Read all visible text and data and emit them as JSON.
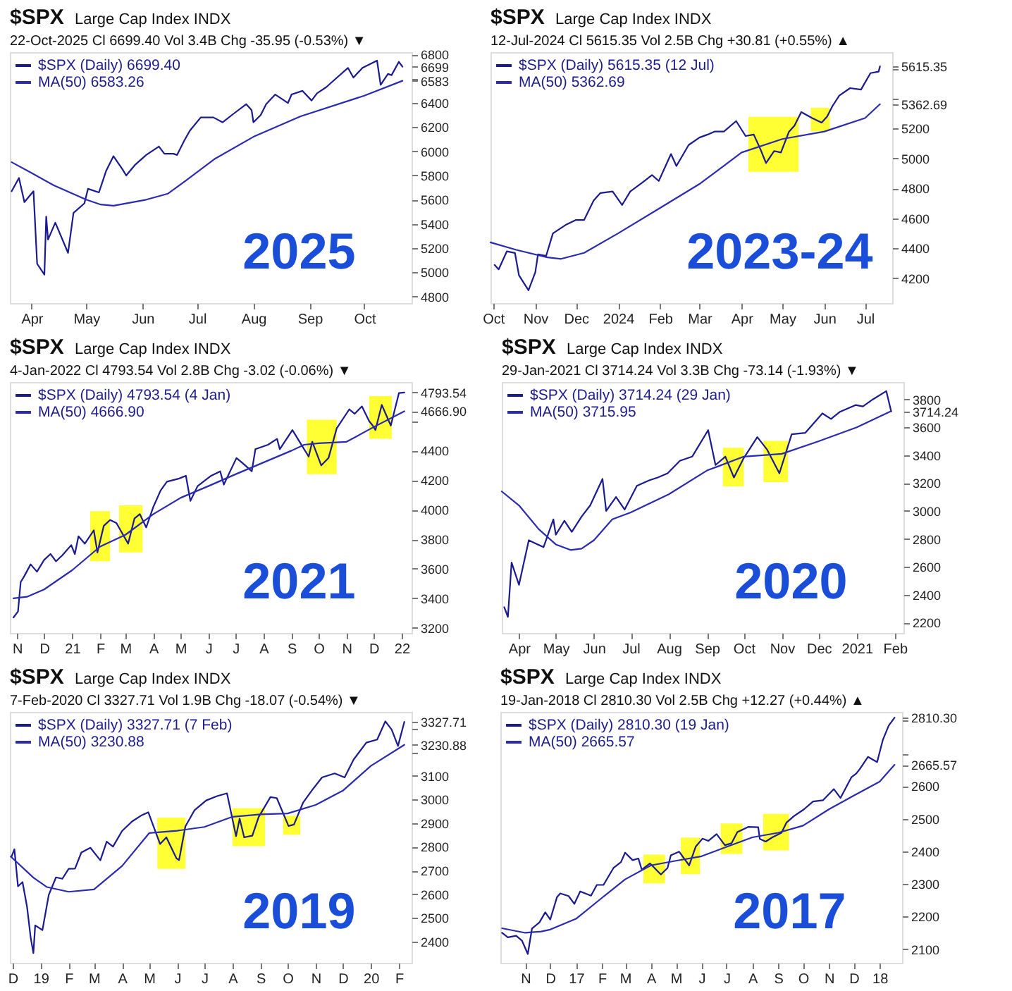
{
  "chart_data": [
    {
      "type": "line",
      "title": "$SPX",
      "subtitle": "Large Cap Index INDX",
      "legend": "top left",
      "annotations": [
        "22-Oct-2025   Cl 6699.40   Vol 3.4B   Chg -35.95 (-0.53%) ▼",
        "2025"
      ],
      "xlim": [
        "2025-03-20",
        "2025-10-27"
      ],
      "xticks": [
        {
          "value": "2025-04-01",
          "label": "Apr"
        },
        {
          "value": "2025-05-01",
          "label": "May"
        },
        {
          "value": "2025-06-01",
          "label": "Jun"
        },
        {
          "value": "2025-07-01",
          "label": "Jul"
        },
        {
          "value": "2025-08-01",
          "label": "Aug"
        },
        {
          "value": "2025-09-01",
          "label": "Sep"
        },
        {
          "value": "2025-10-01",
          "label": "Oct"
        }
      ],
      "ylim": [
        4745,
        6820
      ],
      "yticks": [
        4800,
        5000,
        5200,
        5400,
        5600,
        5800,
        6000,
        6200,
        6400,
        {
          "value": 6583.26,
          "label": "6583"
        },
        {
          "value": 6600,
          "label": null
        },
        {
          "value": 6699.4,
          "label": "6699"
        },
        6800
      ],
      "series": [
        {
          "name": "$SPX (Daily) 6699.40",
          "color": "#1b1b8f",
          "x": [
            "2025-03-21",
            "2025-03-25",
            "2025-03-28",
            "2025-04-02",
            "2025-04-04",
            "2025-04-08",
            "2025-04-09",
            "2025-04-10",
            "2025-04-14",
            "2025-04-21",
            "2025-04-24",
            "2025-04-30",
            "2025-05-02",
            "2025-05-08",
            "2025-05-12",
            "2025-05-16",
            "2025-05-21",
            "2025-05-23",
            "2025-05-28",
            "2025-06-03",
            "2025-06-10",
            "2025-06-13",
            "2025-06-18",
            "2025-06-20",
            "2025-06-24",
            "2025-06-27",
            "2025-07-03",
            "2025-07-10",
            "2025-07-15",
            "2025-07-21",
            "2025-07-28",
            "2025-07-31",
            "2025-08-01",
            "2025-08-05",
            "2025-08-08",
            "2025-08-13",
            "2025-08-20",
            "2025-08-22",
            "2025-08-28",
            "2025-09-02",
            "2025-09-05",
            "2025-09-10",
            "2025-09-16",
            "2025-09-22",
            "2025-09-25",
            "2025-09-30",
            "2025-10-08",
            "2025-10-10",
            "2025-10-14",
            "2025-10-16",
            "2025-10-20",
            "2025-10-22"
          ],
          "values": [
            5670,
            5780,
            5580,
            5670,
            5070,
            4980,
            5460,
            5270,
            5410,
            5160,
            5490,
            5570,
            5690,
            5660,
            5840,
            5960,
            5850,
            5800,
            5890,
            5970,
            6040,
            5980,
            5980,
            5970,
            6090,
            6170,
            6280,
            6280,
            6240,
            6310,
            6390,
            6340,
            6240,
            6300,
            6390,
            6470,
            6400,
            6470,
            6500,
            6420,
            6480,
            6530,
            6610,
            6690,
            6610,
            6690,
            6750,
            6550,
            6640,
            6630,
            6740,
            6699.4
          ]
        },
        {
          "name": "MA(50) 6583.26",
          "color": "#2b2bb0",
          "x": [
            "2025-03-21",
            "2025-04-01",
            "2025-04-13",
            "2025-05-01",
            "2025-05-09",
            "2025-05-16",
            "2025-06-03",
            "2025-06-15",
            "2025-06-25",
            "2025-07-11",
            "2025-08-01",
            "2025-08-27",
            "2025-10-01",
            "2025-10-22"
          ],
          "values": [
            5910,
            5820,
            5720,
            5600,
            5560,
            5550,
            5600,
            5650,
            5760,
            5940,
            6120,
            6290,
            6460,
            6583.26
          ]
        }
      ]
    },
    {
      "type": "line",
      "title": "$SPX",
      "subtitle": "Large Cap Index INDX",
      "legend": "top left",
      "annotations": [
        "12-Jul-2024   Cl 5615.35   Vol 2.5B   Chg +30.81 (+0.55%) ▲",
        "2023-24"
      ],
      "xlim": [
        "2023-09-29",
        "2024-07-21"
      ],
      "xticks": [
        {
          "value": "2023-10-01",
          "label": "Oct"
        },
        {
          "value": "2023-11-01",
          "label": "Nov"
        },
        {
          "value": "2023-12-01",
          "label": "Dec"
        },
        {
          "value": "2024-01-01",
          "label": "2024"
        },
        {
          "value": "2024-02-01",
          "label": "Feb"
        },
        {
          "value": "2024-03-01",
          "label": "Mar"
        },
        {
          "value": "2024-04-01",
          "label": "Apr"
        },
        {
          "value": "2024-05-01",
          "label": "May"
        },
        {
          "value": "2024-06-01",
          "label": "Jun"
        },
        {
          "value": "2024-07-01",
          "label": "Jul"
        }
      ],
      "ylim": [
        4035,
        5710
      ],
      "yticks": [
        4200,
        4400,
        4600,
        4800,
        5000,
        5200,
        {
          "value": 5362.69,
          "label": "5362.69"
        },
        {
          "value": 5400,
          "label": null
        },
        {
          "value": 5600,
          "label": null
        },
        {
          "value": 5615.35,
          "label": "5615.35"
        }
      ],
      "bands": [
        {
          "axis": "x",
          "from": "2024-04-06",
          "to": "2024-05-13",
          "color": "#ffff33"
        },
        {
          "axis": "x",
          "from": "2024-05-22",
          "to": "2024-06-05",
          "color": "#ffff33"
        }
      ],
      "series": [
        {
          "name": "$SPX (Daily) 5615.35 (12 Jul)",
          "color": "#1b1b8f",
          "x": [
            "2023-10-02",
            "2023-10-05",
            "2023-10-11",
            "2023-10-17",
            "2023-10-20",
            "2023-10-27",
            "2023-11-01",
            "2023-11-03",
            "2023-11-09",
            "2023-11-14",
            "2023-11-24",
            "2023-12-01",
            "2023-12-07",
            "2023-12-14",
            "2023-12-19",
            "2023-12-28",
            "2024-01-04",
            "2024-01-10",
            "2024-01-19",
            "2024-01-26",
            "2024-01-31",
            "2024-02-09",
            "2024-02-13",
            "2024-02-22",
            "2024-03-01",
            "2024-03-07",
            "2024-03-12",
            "2024-03-19",
            "2024-03-28",
            "2024-04-04",
            "2024-04-10",
            "2024-04-15",
            "2024-04-19",
            "2024-04-25",
            "2024-04-30",
            "2024-05-06",
            "2024-05-10",
            "2024-05-15",
            "2024-05-23",
            "2024-05-30",
            "2024-06-03",
            "2024-06-07",
            "2024-06-12",
            "2024-06-20",
            "2024-06-28",
            "2024-07-05",
            "2024-07-11",
            "2024-07-12"
          ],
          "values": [
            4290,
            4260,
            4380,
            4370,
            4220,
            4120,
            4240,
            4360,
            4350,
            4500,
            4560,
            4590,
            4590,
            4720,
            4770,
            4780,
            4690,
            4780,
            4840,
            4890,
            4850,
            5030,
            4950,
            5090,
            5140,
            5160,
            5180,
            5180,
            5250,
            5150,
            5160,
            5060,
            4970,
            5050,
            5040,
            5180,
            5220,
            5310,
            5270,
            5240,
            5280,
            5350,
            5420,
            5470,
            5460,
            5570,
            5580,
            5615.35
          ]
        },
        {
          "name": "MA(50) 5362.69",
          "color": "#2b2bb0",
          "x": [
            "2023-09-29",
            "2023-10-18",
            "2023-11-10",
            "2023-11-20",
            "2023-12-07",
            "2024-01-01",
            "2024-02-01",
            "2024-03-01",
            "2024-04-01",
            "2024-05-01",
            "2024-06-01",
            "2024-07-01",
            "2024-07-12"
          ],
          "values": [
            4440,
            4390,
            4340,
            4330,
            4370,
            4500,
            4670,
            4830,
            5040,
            5130,
            5180,
            5270,
            5362.69
          ]
        }
      ]
    },
    {
      "type": "line",
      "title": "$SPX",
      "subtitle": "Large Cap Index INDX",
      "legend": "top left",
      "annotations": [
        "4-Jan-2022   Cl 4793.54   Vol 2.8B   Chg -3.02 (-0.06%) ▼",
        "2021"
      ],
      "xlim": [
        "2020-10-24",
        "2022-01-12"
      ],
      "xticks": [
        {
          "value": "2020-11-01",
          "label": "N"
        },
        {
          "value": "2020-12-01",
          "label": "D"
        },
        {
          "value": "2021-01-01",
          "label": "21"
        },
        {
          "value": "2021-02-01",
          "label": "F"
        },
        {
          "value": "2021-03-01",
          "label": "M"
        },
        {
          "value": "2021-04-01",
          "label": "A"
        },
        {
          "value": "2021-05-01",
          "label": "M"
        },
        {
          "value": "2021-06-01",
          "label": "J"
        },
        {
          "value": "2021-07-01",
          "label": "J"
        },
        {
          "value": "2021-08-01",
          "label": "A"
        },
        {
          "value": "2021-09-01",
          "label": "S"
        },
        {
          "value": "2021-10-01",
          "label": "O"
        },
        {
          "value": "2021-11-01",
          "label": "N"
        },
        {
          "value": "2021-12-01",
          "label": "D"
        },
        {
          "value": "2022-01-01",
          "label": "22"
        }
      ],
      "ylim": [
        3165,
        4865
      ],
      "yticks": [
        3200,
        3400,
        3600,
        3800,
        4000,
        4200,
        4400,
        {
          "value": 4600,
          "label": null
        },
        {
          "value": 4666.9,
          "label": "4666.90"
        },
        {
          "value": 4793.54,
          "label": "4793.54"
        },
        {
          "value": 4800,
          "label": null
        }
      ],
      "bands": [
        {
          "axis": "x",
          "from": "2021-01-21",
          "to": "2021-02-12",
          "color": "#ffff33"
        },
        {
          "axis": "x",
          "from": "2021-02-22",
          "to": "2021-03-20",
          "color": "#ffff33"
        },
        {
          "axis": "x",
          "from": "2021-09-18",
          "to": "2021-10-21",
          "color": "#ffff33"
        },
        {
          "axis": "x",
          "from": "2021-11-26",
          "to": "2021-12-21",
          "color": "#ffff33"
        }
      ],
      "series": [
        {
          "name": "$SPX (Daily) 4793.54 (4 Jan)",
          "color": "#1b1b8f",
          "x": [
            "2020-10-28",
            "2020-11-02",
            "2020-11-05",
            "2020-11-09",
            "2020-11-16",
            "2020-11-23",
            "2020-12-01",
            "2020-12-08",
            "2020-12-14",
            "2020-12-21",
            "2020-12-31",
            "2021-01-04",
            "2021-01-08",
            "2021-01-15",
            "2021-01-25",
            "2021-01-29",
            "2021-02-05",
            "2021-02-12",
            "2021-02-19",
            "2021-03-04",
            "2021-03-11",
            "2021-03-17",
            "2021-03-24",
            "2021-04-01",
            "2021-04-09",
            "2021-04-16",
            "2021-04-29",
            "2021-05-07",
            "2021-05-12",
            "2021-05-20",
            "2021-06-04",
            "2021-06-14",
            "2021-06-18",
            "2021-07-02",
            "2021-07-08",
            "2021-07-19",
            "2021-07-23",
            "2021-08-06",
            "2021-08-16",
            "2021-08-19",
            "2021-09-02",
            "2021-09-10",
            "2021-09-20",
            "2021-09-24",
            "2021-10-04",
            "2021-10-12",
            "2021-10-21",
            "2021-11-04",
            "2021-11-10",
            "2021-11-18",
            "2021-11-26",
            "2021-11-30",
            "2021-12-03",
            "2021-12-10",
            "2021-12-20",
            "2021-12-29",
            "2022-01-04"
          ],
          "values": [
            3270,
            3310,
            3510,
            3550,
            3630,
            3580,
            3660,
            3700,
            3650,
            3690,
            3760,
            3700,
            3820,
            3770,
            3860,
            3710,
            3890,
            3930,
            3910,
            3770,
            3940,
            3970,
            3880,
            4020,
            4130,
            4190,
            4210,
            4230,
            4060,
            4160,
            4230,
            4260,
            4170,
            4350,
            4320,
            4260,
            4410,
            4440,
            4480,
            4410,
            4540,
            4460,
            4360,
            4460,
            4300,
            4350,
            4550,
            4680,
            4650,
            4700,
            4600,
            4570,
            4540,
            4710,
            4570,
            4790,
            4793.54
          ]
        },
        {
          "name": "MA(50) 4666.90",
          "color": "#2b2bb0",
          "x": [
            "2020-10-28",
            "2020-11-12",
            "2020-12-01",
            "2021-01-01",
            "2021-02-01",
            "2021-03-01",
            "2021-04-01",
            "2021-05-01",
            "2021-06-01",
            "2021-07-01",
            "2021-08-01",
            "2021-09-01",
            "2021-09-15",
            "2021-10-01",
            "2021-11-01",
            "2021-12-01",
            "2022-01-04"
          ],
          "values": [
            3400,
            3410,
            3460,
            3590,
            3750,
            3830,
            3970,
            4080,
            4160,
            4240,
            4320,
            4400,
            4440,
            4450,
            4460,
            4560,
            4666.9
          ]
        }
      ]
    },
    {
      "type": "line",
      "title": "$SPX",
      "subtitle": "Large Cap Index INDX",
      "legend": "top left",
      "annotations": [
        "29-Jan-2021   Cl 3714.24   Vol 3.3B   Chg -73.14 (-1.93%) ▼",
        "2020"
      ],
      "xlim": [
        "2020-03-18",
        "2021-02-08"
      ],
      "xticks": [
        {
          "value": "2020-04-01",
          "label": "Apr"
        },
        {
          "value": "2020-05-01",
          "label": "May"
        },
        {
          "value": "2020-06-01",
          "label": "Jun"
        },
        {
          "value": "2020-07-01",
          "label": "Jul"
        },
        {
          "value": "2020-08-01",
          "label": "Aug"
        },
        {
          "value": "2020-09-01",
          "label": "Sep"
        },
        {
          "value": "2020-10-01",
          "label": "Oct"
        },
        {
          "value": "2020-11-01",
          "label": "Nov"
        },
        {
          "value": "2020-12-01",
          "label": "Dec"
        },
        {
          "value": "2021-01-01",
          "label": "2021"
        },
        {
          "value": "2021-02-01",
          "label": "Feb"
        }
      ],
      "ylim": [
        2125,
        3925
      ],
      "yticks": [
        2200,
        2400,
        2600,
        2800,
        3000,
        3200,
        3400,
        3600,
        {
          "value": 3714.24,
          "label": "3714.24"
        },
        3800
      ],
      "bands": [
        {
          "axis": "x",
          "from": "2020-09-14",
          "to": "2020-10-01",
          "color": "#ffff33"
        },
        {
          "axis": "x",
          "from": "2020-10-17",
          "to": "2020-11-06",
          "color": "#ffff33"
        }
      ],
      "series": [
        {
          "name": "$SPX (Daily) 3714.24 (29 Jan)",
          "color": "#1b1b8f",
          "x": [
            "2020-03-20",
            "2020-03-23",
            "2020-03-26",
            "2020-04-01",
            "2020-04-09",
            "2020-04-21",
            "2020-04-29",
            "2020-05-01",
            "2020-05-08",
            "2020-05-14",
            "2020-05-22",
            "2020-05-29",
            "2020-06-08",
            "2020-06-11",
            "2020-06-19",
            "2020-06-26",
            "2020-07-06",
            "2020-07-16",
            "2020-07-23",
            "2020-07-31",
            "2020-08-10",
            "2020-08-20",
            "2020-09-02",
            "2020-09-08",
            "2020-09-16",
            "2020-09-23",
            "2020-10-01",
            "2020-10-12",
            "2020-10-20",
            "2020-10-30",
            "2020-11-09",
            "2020-11-20",
            "2020-12-04",
            "2020-12-11",
            "2020-12-18",
            "2020-12-31",
            "2021-01-06",
            "2021-01-14",
            "2021-01-25",
            "2021-01-29"
          ],
          "values": [
            2310,
            2240,
            2630,
            2470,
            2790,
            2740,
            2940,
            2830,
            2930,
            2850,
            2960,
            3040,
            3230,
            3000,
            3100,
            3010,
            3180,
            3220,
            3240,
            3270,
            3360,
            3390,
            3580,
            3330,
            3390,
            3240,
            3380,
            3530,
            3440,
            3270,
            3550,
            3560,
            3700,
            3660,
            3710,
            3760,
            3750,
            3800,
            3860,
            3714.24
          ]
        },
        {
          "name": "MA(50) 3715.95",
          "color": "#2b2bb0",
          "x": [
            "2020-03-18",
            "2020-04-01",
            "2020-04-17",
            "2020-05-01",
            "2020-05-13",
            "2020-05-22",
            "2020-06-01",
            "2020-06-16",
            "2020-07-01",
            "2020-08-01",
            "2020-09-01",
            "2020-10-01",
            "2020-11-01",
            "2020-12-01",
            "2021-01-01",
            "2021-01-29"
          ],
          "values": [
            3140,
            3040,
            2870,
            2760,
            2720,
            2730,
            2790,
            2940,
            2990,
            3120,
            3290,
            3390,
            3410,
            3500,
            3600,
            3715.95
          ]
        }
      ]
    },
    {
      "type": "line",
      "title": "$SPX",
      "subtitle": "Large Cap Index INDX",
      "legend": "top left",
      "annotations": [
        "7-Feb-2020   Cl 3327.71   Vol 1.9B   Chg -18.07 (-0.54%) ▼",
        "2019"
      ],
      "xlim": [
        "2018-11-28",
        "2020-02-15"
      ],
      "xticks": [
        {
          "value": "2018-12-01",
          "label": "D"
        },
        {
          "value": "2019-01-01",
          "label": "19"
        },
        {
          "value": "2019-02-01",
          "label": "F"
        },
        {
          "value": "2019-03-01",
          "label": "M"
        },
        {
          "value": "2019-04-01",
          "label": "A"
        },
        {
          "value": "2019-05-01",
          "label": "M"
        },
        {
          "value": "2019-06-01",
          "label": "J"
        },
        {
          "value": "2019-07-01",
          "label": "J"
        },
        {
          "value": "2019-08-01",
          "label": "A"
        },
        {
          "value": "2019-09-01",
          "label": "S"
        },
        {
          "value": "2019-10-01",
          "label": "O"
        },
        {
          "value": "2019-11-01",
          "label": "N"
        },
        {
          "value": "2019-12-01",
          "label": "D"
        },
        {
          "value": "2020-01-01",
          "label": "20"
        },
        {
          "value": "2020-02-01",
          "label": "F"
        }
      ],
      "ylim": [
        2310,
        3370
      ],
      "yticks": [
        2400,
        2500,
        2600,
        2700,
        2800,
        2900,
        3000,
        3100,
        {
          "value": 3200,
          "label": null
        },
        {
          "value": 3230.88,
          "label": "3230.88"
        },
        {
          "value": 3300,
          "label": null
        },
        {
          "value": 3327.71,
          "label": "3327.71"
        }
      ],
      "bands": [
        {
          "axis": "x",
          "from": "2019-05-10",
          "to": "2019-06-10",
          "color": "#ffff33"
        },
        {
          "axis": "x",
          "from": "2019-08-01",
          "to": "2019-09-06",
          "color": "#ffff33"
        },
        {
          "axis": "x",
          "from": "2019-09-26",
          "to": "2019-10-15",
          "color": "#ffff33"
        }
      ],
      "series": [
        {
          "name": "$SPX (Daily) 3327.71 (7 Feb)",
          "color": "#1b1b8f",
          "x": [
            "2018-11-30",
            "2018-12-03",
            "2018-12-07",
            "2018-12-12",
            "2018-12-17",
            "2018-12-21",
            "2018-12-24",
            "2018-12-26",
            "2019-01-03",
            "2019-01-10",
            "2019-01-18",
            "2019-01-25",
            "2019-02-01",
            "2019-02-08",
            "2019-02-15",
            "2019-02-25",
            "2019-03-08",
            "2019-03-15",
            "2019-03-22",
            "2019-04-01",
            "2019-04-12",
            "2019-04-23",
            "2019-04-30",
            "2019-05-13",
            "2019-05-20",
            "2019-05-31",
            "2019-06-03",
            "2019-06-10",
            "2019-06-20",
            "2019-07-03",
            "2019-07-15",
            "2019-07-26",
            "2019-08-05",
            "2019-08-09",
            "2019-08-14",
            "2019-08-23",
            "2019-08-30",
            "2019-09-12",
            "2019-09-19",
            "2019-10-02",
            "2019-10-08",
            "2019-10-18",
            "2019-10-28",
            "2019-11-08",
            "2019-11-22",
            "2019-12-03",
            "2019-12-13",
            "2019-12-27",
            "2020-01-08",
            "2020-01-17",
            "2020-01-24",
            "2020-01-31",
            "2020-02-07"
          ],
          "values": [
            2760,
            2790,
            2633,
            2651,
            2546,
            2417,
            2351,
            2468,
            2448,
            2597,
            2671,
            2665,
            2707,
            2708,
            2776,
            2796,
            2743,
            2822,
            2801,
            2867,
            2907,
            2934,
            2946,
            2812,
            2840,
            2752,
            2744,
            2886,
            2954,
            2996,
            3014,
            3026,
            2845,
            2919,
            2840,
            2847,
            2926,
            3010,
            3006,
            2888,
            2894,
            2986,
            3039,
            3093,
            3110,
            3093,
            3169,
            3240,
            3253,
            3330,
            3295,
            3226,
            3327.71
          ]
        },
        {
          "name": "MA(50) 3230.88",
          "color": "#2b2bb0",
          "x": [
            "2018-11-29",
            "2018-12-24",
            "2019-01-08",
            "2019-02-01",
            "2019-03-01",
            "2019-04-01",
            "2019-05-01",
            "2019-06-01",
            "2019-07-01",
            "2019-08-01",
            "2019-09-01",
            "2019-10-01",
            "2019-11-01",
            "2019-12-01",
            "2020-01-01",
            "2020-02-07"
          ],
          "values": [
            2759,
            2670,
            2630,
            2610,
            2620,
            2719,
            2858,
            2868,
            2884,
            2927,
            2937,
            2941,
            2977,
            3037,
            3142,
            3230.88
          ]
        }
      ]
    },
    {
      "type": "line",
      "title": "$SPX",
      "subtitle": "Large Cap Index INDX",
      "legend": "top left",
      "annotations": [
        "19-Jan-2018   Cl 2810.30   Vol 2.5B   Chg +12.27 (+0.44%) ▲",
        "2017"
      ],
      "xlim": [
        "2016-10-02",
        "2018-01-28"
      ],
      "xticks": [
        {
          "value": "2016-11-01",
          "label": "N"
        },
        {
          "value": "2016-12-01",
          "label": "D"
        },
        {
          "value": "2017-01-01",
          "label": "17"
        },
        {
          "value": "2017-02-01",
          "label": "F"
        },
        {
          "value": "2017-03-01",
          "label": "M"
        },
        {
          "value": "2017-04-01",
          "label": "A"
        },
        {
          "value": "2017-05-01",
          "label": "M"
        },
        {
          "value": "2017-06-01",
          "label": "J"
        },
        {
          "value": "2017-07-01",
          "label": "J"
        },
        {
          "value": "2017-08-01",
          "label": "A"
        },
        {
          "value": "2017-09-01",
          "label": "S"
        },
        {
          "value": "2017-10-01",
          "label": "O"
        },
        {
          "value": "2017-11-01",
          "label": "N"
        },
        {
          "value": "2017-12-01",
          "label": "D"
        },
        {
          "value": "2018-01-01",
          "label": "18"
        }
      ],
      "ylim": [
        2058,
        2828
      ],
      "yticks": [
        2100,
        2200,
        2300,
        2400,
        2500,
        2600,
        {
          "value": 2665.57,
          "label": "2665.57"
        },
        {
          "value": 2700,
          "label": null
        },
        {
          "value": 2800,
          "label": null
        },
        {
          "value": 2810.3,
          "label": "2810.30"
        }
      ],
      "bands": [
        {
          "axis": "x",
          "from": "2017-03-23",
          "to": "2017-04-18",
          "color": "#ffff33"
        },
        {
          "axis": "x",
          "from": "2017-05-07",
          "to": "2017-05-30",
          "color": "#ffff33"
        },
        {
          "axis": "x",
          "from": "2017-06-24",
          "to": "2017-07-20",
          "color": "#ffff33"
        },
        {
          "axis": "x",
          "from": "2017-08-14",
          "to": "2017-09-14",
          "color": "#ffff33"
        }
      ],
      "series": [
        {
          "name": "$SPX (Daily) 2810.30 (19 Jan)",
          "color": "#1b1b8f",
          "x": [
            "2016-10-04",
            "2016-10-11",
            "2016-10-21",
            "2016-10-28",
            "2016-11-04",
            "2016-11-09",
            "2016-11-18",
            "2016-11-25",
            "2016-12-01",
            "2016-12-09",
            "2016-12-13",
            "2016-12-23",
            "2016-12-30",
            "2017-01-06",
            "2017-01-19",
            "2017-01-26",
            "2017-02-03",
            "2017-02-15",
            "2017-02-24",
            "2017-03-01",
            "2017-03-10",
            "2017-03-17",
            "2017-03-21",
            "2017-03-31",
            "2017-04-13",
            "2017-04-21",
            "2017-04-25",
            "2017-05-05",
            "2017-05-17",
            "2017-05-25",
            "2017-06-02",
            "2017-06-09",
            "2017-06-19",
            "2017-06-29",
            "2017-07-07",
            "2017-07-14",
            "2017-07-27",
            "2017-08-08",
            "2017-08-10",
            "2017-08-17",
            "2017-08-25",
            "2017-09-05",
            "2017-09-11",
            "2017-09-20",
            "2017-10-02",
            "2017-10-13",
            "2017-10-25",
            "2017-11-07",
            "2017-11-15",
            "2017-11-28",
            "2017-12-04",
            "2017-12-08",
            "2017-12-18",
            "2017-12-29",
            "2018-01-05",
            "2018-01-12",
            "2018-01-19"
          ],
          "values": [
            2150,
            2136,
            2141,
            2126,
            2085,
            2163,
            2182,
            2213,
            2191,
            2259,
            2271,
            2263,
            2239,
            2277,
            2264,
            2297,
            2297,
            2349,
            2367,
            2396,
            2373,
            2378,
            2344,
            2363,
            2329,
            2349,
            2388,
            2399,
            2357,
            2415,
            2439,
            2432,
            2453,
            2419,
            2425,
            2459,
            2475,
            2474,
            2438,
            2430,
            2443,
            2457,
            2488,
            2508,
            2529,
            2553,
            2557,
            2591,
            2564,
            2627,
            2639,
            2652,
            2690,
            2674,
            2743,
            2786,
            2810.3
          ]
        },
        {
          "name": "MA(50) 2665.57",
          "color": "#2b2bb0",
          "x": [
            "2016-10-04",
            "2016-11-01",
            "2016-11-20",
            "2016-12-01",
            "2017-01-01",
            "2017-02-01",
            "2017-03-01",
            "2017-04-01",
            "2017-05-01",
            "2017-06-01",
            "2017-07-01",
            "2017-08-01",
            "2017-09-01",
            "2017-10-01",
            "2017-11-01",
            "2017-12-01",
            "2018-01-01",
            "2018-01-19"
          ],
          "values": [
            2164,
            2150,
            2154,
            2160,
            2193,
            2257,
            2314,
            2357,
            2371,
            2385,
            2414,
            2443,
            2457,
            2479,
            2529,
            2571,
            2614,
            2665.57
          ]
        }
      ]
    }
  ]
}
